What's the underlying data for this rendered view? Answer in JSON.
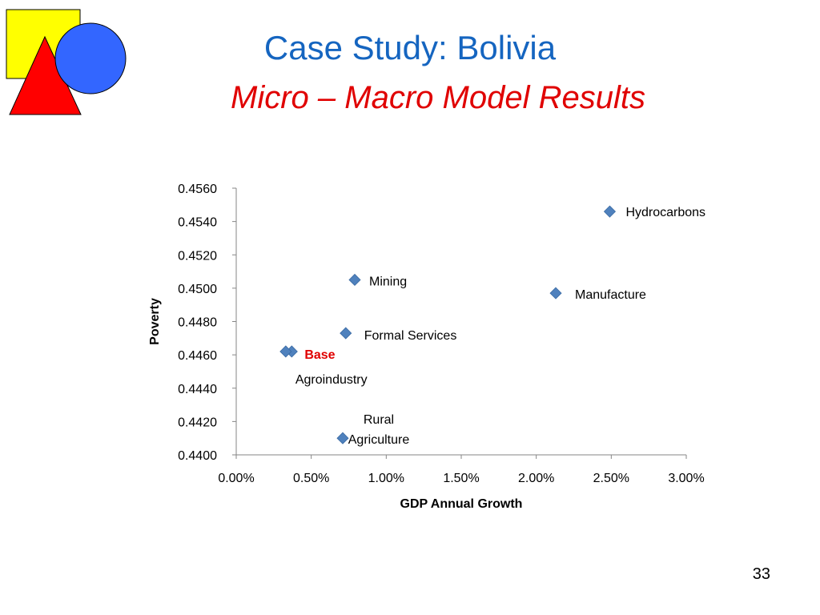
{
  "slide": {
    "title": "Case Study: Bolivia",
    "subtitle": "Micro – Macro Model Results",
    "page_number": "33",
    "logo": {
      "shapes": [
        "yellow-square",
        "red-triangle",
        "blue-circle"
      ]
    }
  },
  "colors": {
    "title": "#1565c0",
    "subtitle": "#e00000",
    "marker": "#4f81bd",
    "base_label": "#e00000",
    "logo_square": "#ffff00",
    "logo_triangle": "#ff0000",
    "logo_circle": "#3366ff"
  },
  "chart_data": {
    "type": "scatter",
    "xlabel": "GDP Annual Growth",
    "ylabel": "Poverty",
    "xlim": [
      0,
      0.03
    ],
    "ylim": [
      0.44,
      0.456
    ],
    "x_ticks": [
      "0.00%",
      "0.50%",
      "1.00%",
      "1.50%",
      "2.00%",
      "2.50%",
      "3.00%"
    ],
    "y_ticks": [
      "0.4400",
      "0.4420",
      "0.4440",
      "0.4460",
      "0.4480",
      "0.4500",
      "0.4520",
      "0.4540",
      "0.4560"
    ],
    "grid": false,
    "legend": false,
    "marker": "diamond",
    "points": [
      {
        "label": [
          "Hydrocarbons"
        ],
        "x": 0.0249,
        "y": 0.4546
      },
      {
        "label": [
          "Mining"
        ],
        "x": 0.0079,
        "y": 0.4505
      },
      {
        "label": [
          "Manufacture"
        ],
        "x": 0.0213,
        "y": 0.4497
      },
      {
        "label": [
          "Formal Services"
        ],
        "x": 0.0073,
        "y": 0.4473
      },
      {
        "label": [
          "Base"
        ],
        "x": 0.0037,
        "y": 0.4462,
        "highlight": true
      },
      {
        "label": [
          "Agroindustry"
        ],
        "x": 0.0033,
        "y": 0.4462
      },
      {
        "label": [
          "Rural",
          "Agriculture"
        ],
        "x": 0.0071,
        "y": 0.441
      }
    ]
  }
}
